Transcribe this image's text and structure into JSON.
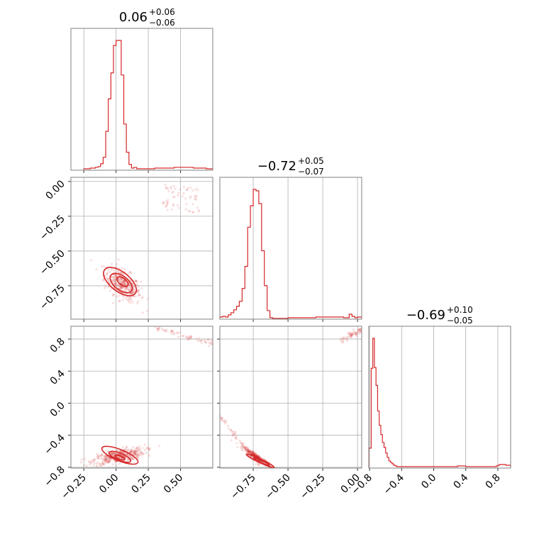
{
  "chart_data": {
    "type": "scatter",
    "parameters": [
      {
        "value": "0.06",
        "plus": "+0.06",
        "minus": "−0.06",
        "range": [
          -0.35,
          0.75
        ]
      },
      {
        "value": "−0.72",
        "plus": "+0.05",
        "minus": "−0.07",
        "range": [
          -0.99,
          0.03
        ]
      },
      {
        "value": "−0.69",
        "plus": "+0.10",
        "minus": "−0.05",
        "range": [
          -0.81,
          0.96
        ]
      }
    ],
    "ticks": [
      {
        "values": [
          -0.25,
          0.0,
          0.25,
          0.5
        ],
        "labels": [
          "−0.25",
          "0.00",
          "0.25",
          "0.50"
        ]
      },
      {
        "values": [
          -0.75,
          -0.5,
          -0.25,
          0.0
        ],
        "labels": [
          "−0.75",
          "−0.50",
          "−0.25",
          "0.00"
        ]
      },
      {
        "values": [
          -0.8,
          -0.4,
          0.0,
          0.4,
          0.8
        ],
        "labels": [
          "−0.8",
          "−0.4",
          "0.0",
          "0.4",
          "0.8"
        ]
      }
    ],
    "hist1d": [
      {
        "edges": [
          -0.25,
          -0.22,
          -0.2,
          -0.18,
          -0.16,
          -0.14,
          -0.12,
          -0.1,
          -0.08,
          -0.06,
          -0.04,
          -0.02,
          0.0,
          0.02,
          0.04,
          0.06,
          0.08,
          0.1,
          0.12,
          0.14,
          0.16,
          0.18,
          0.2,
          0.25,
          0.3,
          0.35,
          0.4,
          0.45,
          0.5,
          0.55,
          0.6,
          0.65,
          0.7,
          0.75
        ],
        "counts": [
          1,
          1,
          2,
          2,
          3,
          4,
          8,
          17,
          53,
          98,
          134,
          172,
          179,
          179,
          131,
          63,
          24,
          7,
          2,
          3,
          1,
          1,
          1,
          1,
          2,
          2,
          2,
          3,
          3,
          3,
          2,
          2,
          1
        ]
      },
      {
        "edges": [
          -0.99,
          -0.97,
          -0.95,
          -0.93,
          -0.91,
          -0.89,
          -0.87,
          -0.85,
          -0.83,
          -0.81,
          -0.79,
          -0.77,
          -0.75,
          -0.73,
          -0.71,
          -0.69,
          -0.67,
          -0.65,
          -0.63,
          -0.61,
          -0.59,
          -0.5,
          -0.3,
          -0.2,
          -0.1,
          -0.06,
          -0.04,
          -0.02,
          0.0,
          0.03
        ],
        "counts": [
          2,
          3,
          2,
          5,
          8,
          12,
          17,
          24,
          42,
          73,
          128,
          158,
          181,
          179,
          161,
          95,
          46,
          11,
          1,
          0,
          0,
          1,
          2,
          2,
          1,
          6,
          3,
          1,
          2
        ]
      },
      {
        "edges": [
          -0.81,
          -0.78,
          -0.76,
          -0.74,
          -0.72,
          -0.7,
          -0.68,
          -0.66,
          -0.64,
          -0.62,
          -0.6,
          -0.58,
          -0.56,
          -0.54,
          -0.52,
          -0.5,
          -0.48,
          -0.46,
          -0.44,
          -0.3,
          0.0,
          0.3,
          0.4,
          0.5,
          0.75,
          0.78,
          0.8,
          0.82,
          0.86,
          0.9,
          0.96
        ],
        "counts": [
          27,
          139,
          181,
          140,
          115,
          79,
          59,
          46,
          35,
          28,
          20,
          14,
          9,
          7,
          5,
          3,
          2,
          1,
          1,
          1,
          1,
          2,
          1,
          1,
          1,
          2,
          3,
          4,
          4,
          3
        ]
      }
    ],
    "pairs": [
      {
        "x": 0,
        "y": 1,
        "n": 380,
        "centre": [
          0.05,
          -0.74
        ],
        "spread": [
          0.07,
          0.06
        ],
        "corr": -0.55,
        "contours": [
          {
            "cx": 0.03,
            "cy": -0.72,
            "rx": 0.15,
            "ry": 0.07,
            "rot": 38
          },
          {
            "cx": 0.04,
            "cy": -0.73,
            "rx": 0.1,
            "ry": 0.05,
            "rot": 38
          },
          {
            "cx": 0.05,
            "cy": -0.72,
            "rx": 0.05,
            "ry": 0.025,
            "rot": 38
          }
        ]
      },
      {
        "x": 0,
        "y": 2,
        "n": 420,
        "centre": [
          0.02,
          -0.66
        ],
        "spread": [
          0.1,
          0.05
        ],
        "corr": 0.6,
        "contours": [
          {
            "cx": 0.03,
            "cy": -0.65,
            "rx": 0.15,
            "ry": 0.07,
            "rot": 22
          },
          {
            "cx": 0.03,
            "cy": -0.67,
            "rx": 0.09,
            "ry": 0.045,
            "rot": 22
          },
          {
            "cx": 0.03,
            "cy": -0.68,
            "rx": 0.04,
            "ry": 0.02,
            "rot": 22
          }
        ]
      },
      {
        "x": 1,
        "y": 2,
        "n": 300,
        "centre": [
          -0.72,
          -0.68
        ],
        "spread": [
          0.05,
          0.06
        ],
        "corr": -0.95,
        "contours": [
          {
            "cx": -0.7,
            "cy": -0.72,
            "rx": 0.11,
            "ry": 0.022,
            "rot": 25
          },
          {
            "cx": -0.69,
            "cy": -0.73,
            "rx": 0.06,
            "ry": 0.014,
            "rot": 25
          }
        ]
      }
    ]
  }
}
